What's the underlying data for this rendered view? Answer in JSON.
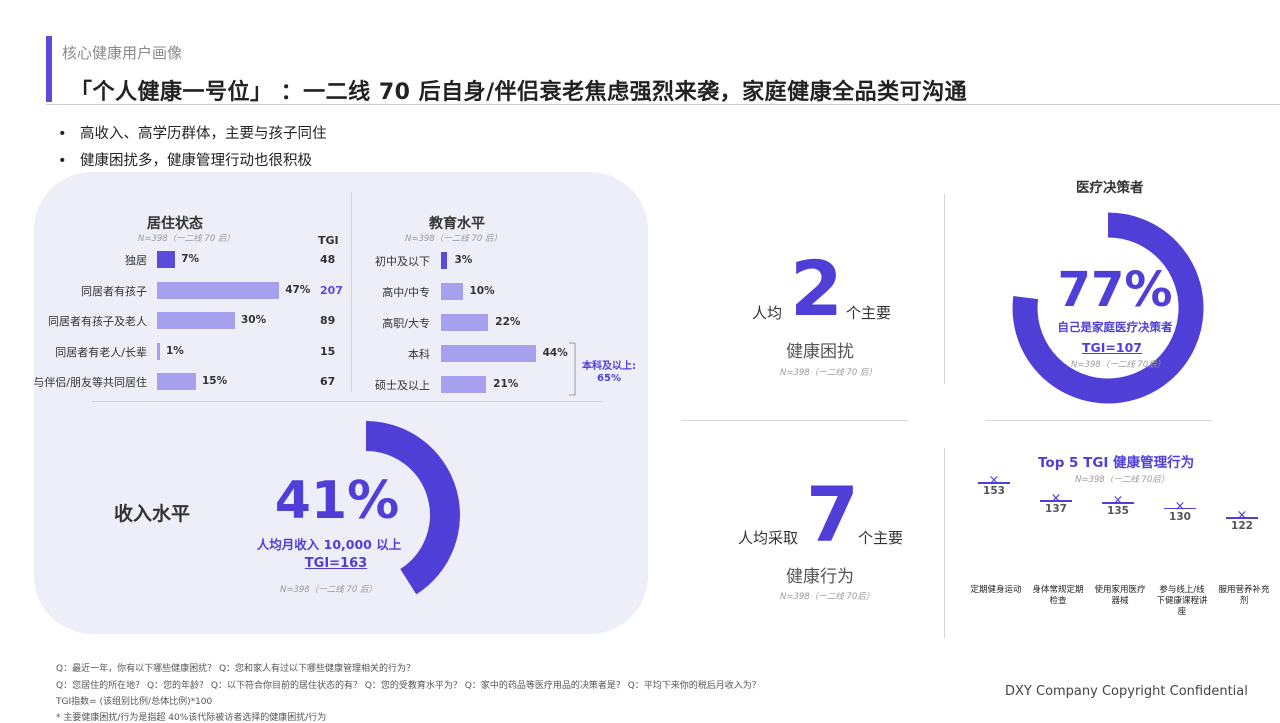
{
  "header": {
    "section_label": "核心健康用户画像",
    "title": "「个人健康一号位」 ：一二线 70 后自身/伴侣衰老焦虑强烈来袭，家庭健康全品类可沟通"
  },
  "bullets": [
    "高收入、高学历群体，主要与孩子同住",
    "健康困扰多，健康管理行动也很积极"
  ],
  "residence": {
    "title": "居住状态",
    "note": "N=398（一二线 70 后）",
    "tgi_header": "TGI",
    "rows": [
      {
        "label": "独居",
        "pct": "7%",
        "value": 7,
        "tgi": "48"
      },
      {
        "label": "同居者有孩子",
        "pct": "47%",
        "value": 47,
        "tgi": "207"
      },
      {
        "label": "同居者有孩子及老人",
        "pct": "30%",
        "value": 30,
        "tgi": "89"
      },
      {
        "label": "同居者有老人/长辈",
        "pct": "1%",
        "value": 1,
        "tgi": "15"
      },
      {
        "label": "与伴侣/朋友等共同居住",
        "pct": "15%",
        "value": 15,
        "tgi": "67"
      }
    ]
  },
  "education": {
    "title": "教育水平",
    "note": "N=398（一二线 70 后）",
    "rows": [
      {
        "label": "初中及以下",
        "pct": "3%",
        "value": 3
      },
      {
        "label": "高中/中专",
        "pct": "10%",
        "value": 10
      },
      {
        "label": "高职/大专",
        "pct": "22%",
        "value": 22
      },
      {
        "label": "本科",
        "pct": "44%",
        "value": 44
      },
      {
        "label": "硕士及以上",
        "pct": "21%",
        "value": 21
      }
    ],
    "bracket_label_1": "本科及以上:",
    "bracket_label_2": "65%"
  },
  "income": {
    "title": "收入水平",
    "value": "41%",
    "ring_fraction": 0.41,
    "desc": "人均月收入 10,000 以上",
    "tgi": "TGI=163",
    "note": "N=398（一二线 70 后）"
  },
  "concerns": {
    "prefix": "人均",
    "number": "2",
    "suffix": "个主要",
    "label": "健康困扰",
    "note": "N=398（一二线 70 后）"
  },
  "actions": {
    "prefix": "人均采取",
    "number": "7",
    "suffix": "个主要",
    "label": "健康行为",
    "note": "N=398（一二线 70后）"
  },
  "decision": {
    "title": "医疗决策者",
    "value": "77%",
    "ring_fraction": 0.77,
    "desc": "自己是家庭医疗决策者",
    "tgi": "TGI=107",
    "note": "N=398（一二线 70后）"
  },
  "top5": {
    "title": "Top 5 TGI 健康管理行为",
    "note": "N=398（一二线 70后）",
    "chart_data": {
      "type": "scatter",
      "categories": [
        "定期健身运动",
        "身体常规定期检查",
        "使用家用医疗器械",
        "参与线上/线下健康课程讲座",
        "服用营养补充剂"
      ],
      "values": [
        153,
        137,
        135,
        130,
        122
      ],
      "labels": [
        "153",
        "137",
        "135",
        "130",
        "122"
      ],
      "xlabels": [
        "定期健身运动",
        "身体常规定期\n检查",
        "使用家用医疗\n器械",
        "参与线上/线\n下健康课程讲\n座",
        "服用营养补充\n剂"
      ]
    }
  },
  "footnotes": [
    "Q：最近一年，你有以下哪些健康困扰？ Q：您和家人有过以下哪些健康管理相关的行为？",
    "Q：您居住的所在地？ Q：您的年龄？ Q：以下符合你目前的居住状态的有？ Q：您的受教育水平为？ Q：家中的药品等医疗用品的决策者是？ Q：平均下来你的税后月收入为？",
    "TGI指数= (该组别比例/总体比例)*100",
    "* 主要健康困扰/行为是指超 40%该代际被访者选择的健康困扰/行为"
  ],
  "copyright": "DXY Company Copyright Confidential",
  "colors": {
    "accent": "#5b4bdb",
    "bar_light": "#a7a0ee",
    "panel": "#eeeef8"
  }
}
